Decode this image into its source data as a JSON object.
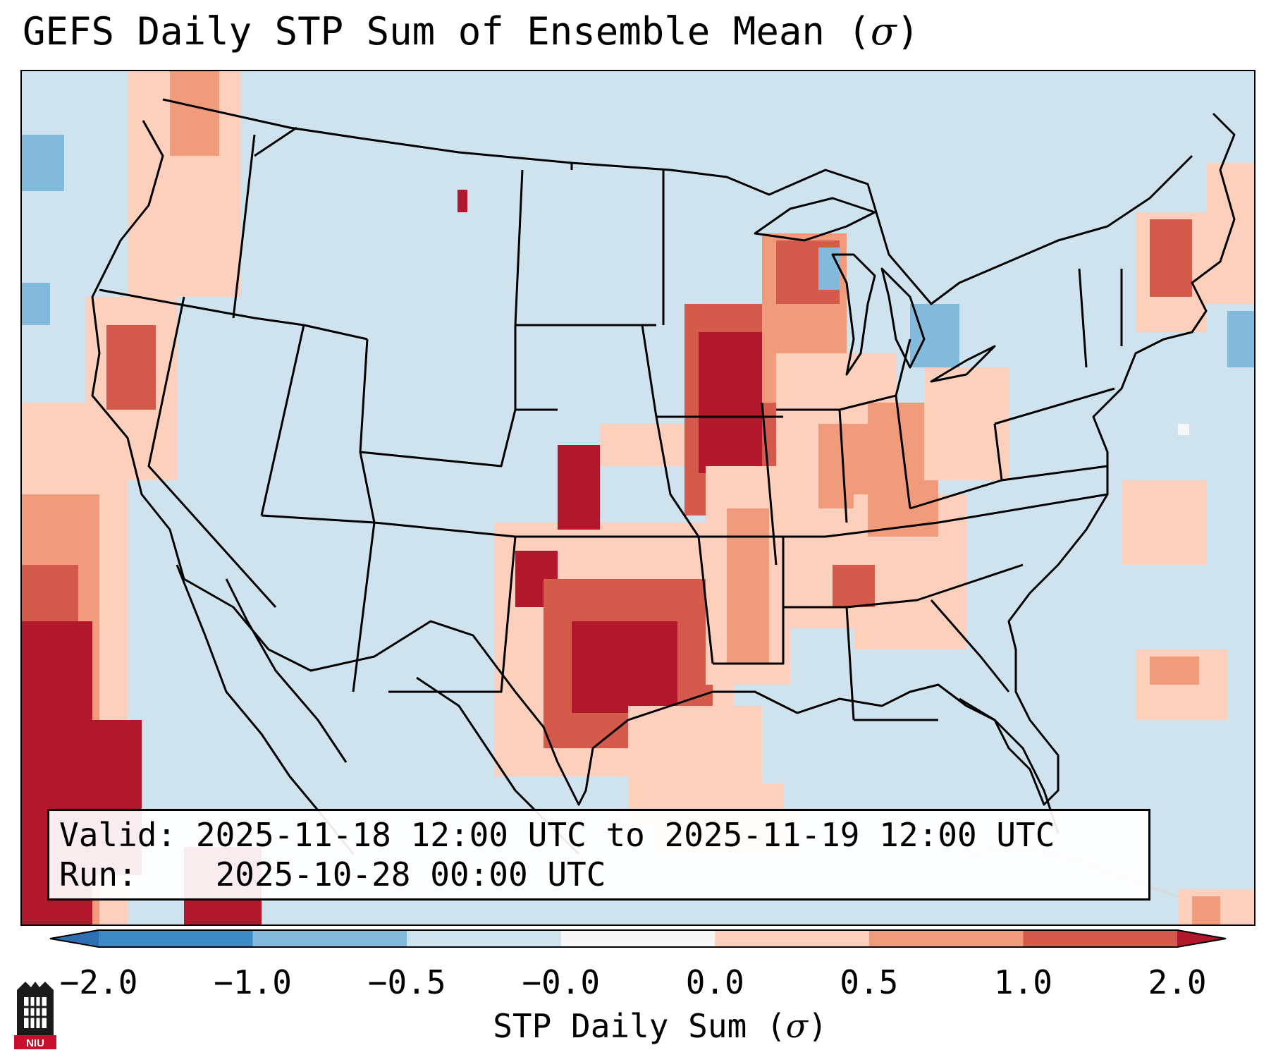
{
  "title": {
    "text": "GEFS Daily STP Sum of Ensemble Mean (",
    "symbol": "σ",
    "close": ")"
  },
  "info": {
    "valid_label": "Valid:",
    "valid_value": "2025-11-18 12:00 UTC to 2025-11-19 12:00 UTC",
    "run_label": "Run:",
    "run_value": "2025-10-28 00:00 UTC"
  },
  "colorbar": {
    "label_text": "STP Daily Sum (",
    "label_symbol": "σ",
    "label_close": ")",
    "ticks": [
      "−2.0",
      "−1.0",
      "−0.5",
      "−0.0",
      "0.0",
      "0.5",
      "1.0",
      "2.0"
    ],
    "bins": [
      {
        "range": "< -2.0",
        "color": "#2e6fb3"
      },
      {
        "range": "-2.0 to -1.0",
        "color": "#3e8ac4"
      },
      {
        "range": "-1.0 to -0.5",
        "color": "#83badb"
      },
      {
        "range": "-0.5 to -0.0",
        "color": "#cfe3ef"
      },
      {
        "range": "-0.0 to 0.0",
        "color": "#f7f7f7"
      },
      {
        "range": "0.0 to 0.5",
        "color": "#fcd0bc"
      },
      {
        "range": "0.5 to 1.0",
        "color": "#f09b7c"
      },
      {
        "range": "1.0 to 2.0",
        "color": "#d45a4b"
      },
      {
        "range": "> 2.0",
        "color": "#b2182b"
      }
    ]
  },
  "map": {
    "region": "Contiguous United States",
    "background_color": "#cfe3ef",
    "coastline_color": "#000000"
  },
  "logo": {
    "text": "NIU"
  }
}
